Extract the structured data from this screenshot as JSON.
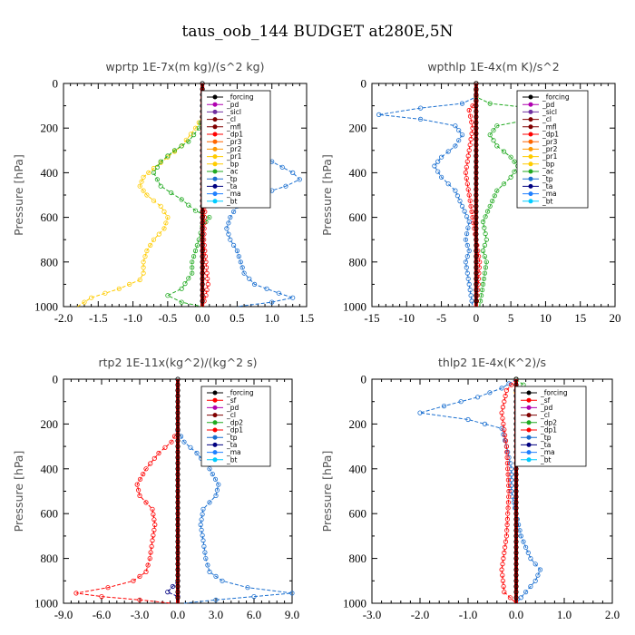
{
  "figure": {
    "title": "taus_oob_144  BUDGET at280E,5N"
  },
  "colors": {
    "_forcing": "#000000",
    "_pd": "#b000b0",
    "_sicl": "#7030a0",
    "_cl": "#800000",
    "_mfl": "#800000",
    "_dp1": "#ff0000",
    "_pr3": "#ff6600",
    "_pr2": "#ff9900",
    "_pr1": "#ffcc00",
    "_bp": "#ffcc00",
    "_ac": "#22aa22",
    "_tp": "#1a6fd0",
    "_ta": "#000080",
    "_ma": "#2080ff",
    "_bt": "#00ccff",
    "_sf": "#ff0000",
    "_dp2": "#22aa22"
  },
  "chart_data": [
    {
      "type": "line",
      "title": "wprtp  1E-7x(m kg)/(s^2 kg)",
      "ylabel": "Pressure [hPa]",
      "xlim": [
        -2.0,
        1.5
      ],
      "ylim": [
        1000,
        0
      ],
      "xticks": [
        -2.0,
        -1.5,
        -1.0,
        -0.5,
        0.0,
        0.5,
        1.0,
        1.5
      ],
      "xtick_labels": [
        "-2.0",
        "-1.5",
        "-1.0",
        "-0.5",
        "0.0",
        "0.5",
        "1.0",
        "1.5"
      ],
      "yticks": [
        0,
        200,
        400,
        600,
        800,
        1000
      ],
      "legend_position": "top-right",
      "legend": [
        "_forcing",
        "_pd",
        "_sicl",
        "_cl",
        "_mfl",
        "_dp1",
        "_pr3",
        "_pr2",
        "_pr1",
        "_bp",
        "_ac",
        "_tp",
        "_ta",
        "_ma",
        "_bt"
      ],
      "series": [
        {
          "name": "_pr1",
          "points": [
            [
              0,
              150
            ],
            [
              -0.1,
              200
            ],
            [
              -0.3,
              280
            ],
            [
              -0.5,
              330
            ],
            [
              -0.7,
              380
            ],
            [
              -0.85,
              420
            ],
            [
              -0.9,
              460
            ],
            [
              -0.8,
              500
            ],
            [
              -0.6,
              550
            ],
            [
              -0.5,
              600
            ],
            [
              -0.55,
              650
            ],
            [
              -0.7,
              700
            ],
            [
              -0.8,
              750
            ],
            [
              -0.85,
              800
            ],
            [
              -0.85,
              850
            ],
            [
              -0.9,
              880
            ],
            [
              -1.2,
              920
            ],
            [
              -1.6,
              960
            ],
            [
              -1.8,
              1000
            ]
          ]
        },
        {
          "name": "_ac",
          "points": [
            [
              0,
              150
            ],
            [
              -0.05,
              200
            ],
            [
              -0.2,
              260
            ],
            [
              -0.4,
              300
            ],
            [
              -0.6,
              350
            ],
            [
              -0.7,
              400
            ],
            [
              -0.6,
              460
            ],
            [
              -0.3,
              520
            ],
            [
              -0.1,
              570
            ],
            [
              0.1,
              600
            ],
            [
              0.0,
              640
            ],
            [
              -0.05,
              700
            ],
            [
              -0.1,
              750
            ],
            [
              -0.15,
              800
            ],
            [
              -0.15,
              850
            ],
            [
              -0.3,
              920
            ],
            [
              -0.5,
              950
            ],
            [
              -0.3,
              980
            ],
            [
              0,
              1000
            ]
          ]
        },
        {
          "name": "_tp",
          "points": [
            [
              0,
              100
            ],
            [
              0.05,
              150
            ],
            [
              0.1,
              200
            ],
            [
              0.3,
              250
            ],
            [
              0.6,
              300
            ],
            [
              1.0,
              350
            ],
            [
              1.3,
              400
            ],
            [
              1.4,
              430
            ],
            [
              1.2,
              460
            ],
            [
              0.8,
              500
            ],
            [
              0.5,
              550
            ],
            [
              0.4,
              600
            ],
            [
              0.35,
              650
            ],
            [
              0.4,
              700
            ],
            [
              0.5,
              750
            ],
            [
              0.55,
              800
            ],
            [
              0.6,
              850
            ],
            [
              0.75,
              900
            ],
            [
              1.1,
              940
            ],
            [
              1.3,
              960
            ],
            [
              1.0,
              980
            ],
            [
              0.5,
              1000
            ]
          ]
        },
        {
          "name": "_dp1",
          "points": [
            [
              0,
              150
            ],
            [
              0.03,
              300
            ],
            [
              0.08,
              400
            ],
            [
              0.05,
              500
            ],
            [
              0.03,
              600
            ],
            [
              0.02,
              700
            ],
            [
              0.05,
              800
            ],
            [
              0.08,
              900
            ],
            [
              0.05,
              950
            ],
            [
              0,
              1000
            ]
          ]
        },
        {
          "name": "_forcing",
          "points": [
            [
              0,
              0
            ],
            [
              0,
              1000
            ]
          ]
        }
      ]
    },
    {
      "type": "line",
      "title": "wpthlp  1E-4x(m K)/s^2",
      "ylabel": "Pressure [hPa]",
      "xlim": [
        -15,
        20
      ],
      "ylim": [
        1000,
        0
      ],
      "xticks": [
        -15,
        -10,
        -5,
        0,
        5,
        10,
        15,
        20
      ],
      "xtick_labels": [
        "-15",
        "-10",
        "-5",
        "0",
        "5",
        "10",
        "15",
        "20"
      ],
      "yticks": [
        0,
        200,
        400,
        600,
        800,
        1000
      ],
      "legend_position": "top-right",
      "legend": [
        "_forcing",
        "_pd",
        "_sicl",
        "_cl",
        "_mfl",
        "_dp1",
        "_pr3",
        "_pr2",
        "_pr1",
        "_bp",
        "_ac",
        "_tp",
        "_ta",
        "_ma",
        "_bt"
      ],
      "series": [
        {
          "name": "_tp",
          "points": [
            [
              0,
              0
            ],
            [
              0,
              60
            ],
            [
              -2,
              90
            ],
            [
              -8,
              110
            ],
            [
              -14,
              140
            ],
            [
              -8,
              160
            ],
            [
              -3,
              190
            ],
            [
              -2,
              230
            ],
            [
              -3,
              280
            ],
            [
              -5,
              330
            ],
            [
              -6,
              370
            ],
            [
              -5,
              420
            ],
            [
              -3,
              480
            ],
            [
              -2,
              550
            ],
            [
              -1,
              620
            ],
            [
              -1.5,
              700
            ],
            [
              -1,
              750
            ],
            [
              -1.5,
              800
            ],
            [
              -1,
              900
            ],
            [
              -0.5,
              1000
            ]
          ]
        },
        {
          "name": "_ac",
          "points": [
            [
              0,
              0
            ],
            [
              0,
              60
            ],
            [
              2,
              90
            ],
            [
              8,
              110
            ],
            [
              15,
              140
            ],
            [
              8,
              160
            ],
            [
              3,
              190
            ],
            [
              2,
              230
            ],
            [
              3,
              280
            ],
            [
              5,
              330
            ],
            [
              6,
              370
            ],
            [
              5,
              420
            ],
            [
              3,
              480
            ],
            [
              2,
              550
            ],
            [
              1,
              620
            ],
            [
              1.5,
              700
            ],
            [
              1,
              750
            ],
            [
              1.5,
              800
            ],
            [
              1,
              900
            ],
            [
              0.5,
              1000
            ]
          ]
        },
        {
          "name": "_dp1",
          "points": [
            [
              0,
              0
            ],
            [
              0,
              80
            ],
            [
              -1,
              120
            ],
            [
              -0.5,
              200
            ],
            [
              -1,
              300
            ],
            [
              -1.5,
              400
            ],
            [
              -1,
              500
            ],
            [
              -0.5,
              600
            ],
            [
              0,
              700
            ],
            [
              0.5,
              800
            ],
            [
              0.3,
              900
            ],
            [
              0,
              1000
            ]
          ]
        },
        {
          "name": "_forcing",
          "points": [
            [
              0,
              0
            ],
            [
              0,
              1000
            ]
          ]
        }
      ]
    },
    {
      "type": "line",
      "title": "rtp2  1E-11x(kg^2)/(kg^2 s)",
      "ylabel": "Pressure [hPa]",
      "xlim": [
        -9.0,
        9.0
      ],
      "ylim": [
        1000,
        0
      ],
      "xticks": [
        -9.0,
        -6.0,
        -3.0,
        0.0,
        3.0,
        6.0,
        9.0
      ],
      "xtick_labels": [
        "-9.0",
        "-6.0",
        "-3.0",
        "0.0",
        "3.0",
        "6.0",
        "9.0"
      ],
      "yticks": [
        0,
        200,
        400,
        600,
        800,
        1000
      ],
      "legend_position": "top-right",
      "legend": [
        "_forcing",
        "_sf",
        "_pd",
        "_cl",
        "_dp2",
        "_dp1",
        "_tp",
        "_ta",
        "_ma",
        "_bt"
      ],
      "series": [
        {
          "name": "_dp1",
          "points": [
            [
              0,
              230
            ],
            [
              -0.5,
              280
            ],
            [
              -1.5,
              330
            ],
            [
              -2.5,
              400
            ],
            [
              -3.2,
              470
            ],
            [
              -3.0,
              520
            ],
            [
              -2.0,
              580
            ],
            [
              -1.8,
              650
            ],
            [
              -2.0,
              720
            ],
            [
              -2.2,
              800
            ],
            [
              -2.5,
              860
            ],
            [
              -3.5,
              900
            ],
            [
              -5.5,
              930
            ],
            [
              -8.0,
              955
            ],
            [
              -6.0,
              970
            ],
            [
              -3.0,
              985
            ],
            [
              -0.5,
              1000
            ]
          ]
        },
        {
          "name": "_tp",
          "points": [
            [
              0,
              230
            ],
            [
              0.5,
              280
            ],
            [
              1.5,
              330
            ],
            [
              2.5,
              400
            ],
            [
              3.2,
              470
            ],
            [
              3.0,
              520
            ],
            [
              2.0,
              580
            ],
            [
              1.8,
              650
            ],
            [
              2.0,
              720
            ],
            [
              2.2,
              800
            ],
            [
              2.5,
              860
            ],
            [
              3.5,
              900
            ],
            [
              5.5,
              930
            ],
            [
              9.0,
              955
            ],
            [
              6.0,
              970
            ],
            [
              3.0,
              985
            ],
            [
              0.5,
              1000
            ]
          ]
        },
        {
          "name": "_ta",
          "points": [
            [
              0,
              900
            ],
            [
              -0.8,
              950
            ],
            [
              0,
              970
            ],
            [
              0,
              1000
            ]
          ]
        },
        {
          "name": "_forcing",
          "points": [
            [
              0,
              0
            ],
            [
              0,
              1000
            ]
          ]
        }
      ]
    },
    {
      "type": "line",
      "title": "thlp2  1E-4x(K^2)/s",
      "ylabel": "Pressure [hPa]",
      "xlim": [
        -3.0,
        2.0
      ],
      "ylim": [
        1000,
        0
      ],
      "xticks": [
        -3.0,
        -2.0,
        -1.0,
        0.0,
        1.0,
        2.0
      ],
      "xtick_labels": [
        "-3.0",
        "-2.0",
        "-1.0",
        "0.0",
        "1.0",
        "2.0"
      ],
      "yticks": [
        0,
        200,
        400,
        600,
        800,
        1000
      ],
      "legend_position": "top-right",
      "legend": [
        "_forcing",
        "_sf",
        "_pd",
        "_cl",
        "_dp2",
        "_dp1",
        "_tp",
        "_ta",
        "_ma",
        "_bt"
      ],
      "series": [
        {
          "name": "_tp",
          "points": [
            [
              0,
              0
            ],
            [
              -0.3,
              40
            ],
            [
              -0.8,
              80
            ],
            [
              -1.5,
              120
            ],
            [
              -2.0,
              150
            ],
            [
              -1.0,
              180
            ],
            [
              -0.3,
              220
            ],
            [
              -0.2,
              300
            ],
            [
              -0.1,
              400
            ],
            [
              -0.1,
              500
            ],
            [
              0,
              600
            ],
            [
              0.1,
              700
            ],
            [
              0.3,
              800
            ],
            [
              0.5,
              850
            ],
            [
              0.4,
              900
            ],
            [
              0.2,
              950
            ],
            [
              0,
              1000
            ]
          ]
        },
        {
          "name": "_pr1",
          "points": [
            [
              0,
              60
            ],
            [
              0.2,
              100
            ],
            [
              0.7,
              130
            ],
            [
              1.4,
              150
            ],
            [
              0.8,
              170
            ],
            [
              0.2,
              200
            ],
            [
              0,
              300
            ]
          ]
        },
        {
          "name": "_dp1",
          "points": [
            [
              0,
              0
            ],
            [
              -0.2,
              50
            ],
            [
              -0.3,
              150
            ],
            [
              -0.2,
              300
            ],
            [
              -0.15,
              500
            ],
            [
              -0.2,
              700
            ],
            [
              -0.3,
              850
            ],
            [
              -0.25,
              950
            ],
            [
              0,
              1000
            ]
          ]
        },
        {
          "name": "_dp2",
          "points": [
            [
              0,
              0
            ],
            [
              0.3,
              50
            ],
            [
              0.5,
              120
            ],
            [
              0.4,
              200
            ],
            [
              0.2,
              300
            ]
          ]
        },
        {
          "name": "_forcing",
          "points": [
            [
              0,
              0
            ],
            [
              0,
              1000
            ]
          ]
        }
      ]
    }
  ]
}
